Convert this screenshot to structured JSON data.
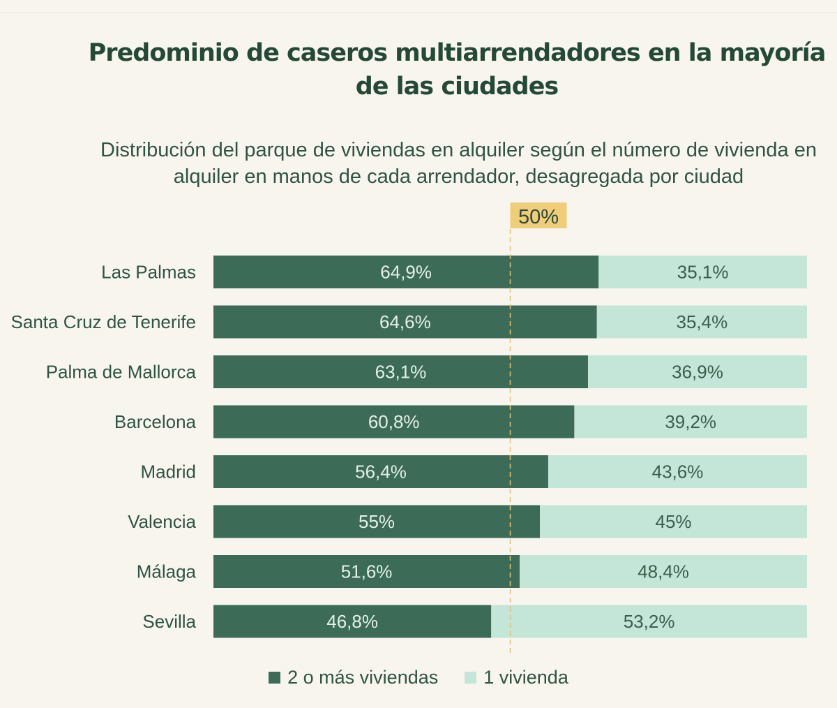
{
  "title": "Predominio de caseros multiarrendadores en la mayoría de las ciudades",
  "subtitle": "Distribución  del parque de viviendas en alquiler según el número de vivienda en alquiler en manos de cada arrendador, desagregada por ciudad",
  "colors": {
    "multi": "#3c6c58",
    "single": "#c4e6d8",
    "reference_line": "#e8c16a",
    "reference_badge": "#f0cd79",
    "city_label": "#2f5443",
    "value_label_dark": "#e4efe9",
    "value_label_light": "#3a5d4d"
  },
  "chart_data": {
    "type": "bar",
    "orientation": "horizontal",
    "stacked": true,
    "categories": [
      "Las Palmas",
      "Santa Cruz de Tenerife",
      "Palma de Mallorca",
      "Barcelona",
      "Madrid",
      "Valencia",
      "Málaga",
      "Sevilla"
    ],
    "series": [
      {
        "name": "2 o más viviendas",
        "values": [
          64.9,
          64.6,
          63.1,
          60.8,
          56.4,
          55,
          51.6,
          46.8
        ],
        "labels": [
          "64,9%",
          "64,6%",
          "63,1%",
          "60,8%",
          "56,4%",
          "55%",
          "51,6%",
          "46,8%"
        ]
      },
      {
        "name": "1 vivienda",
        "values": [
          35.1,
          35.4,
          36.9,
          39.2,
          43.6,
          45,
          48.4,
          53.2
        ],
        "labels": [
          "35,1%",
          "35,4%",
          "36,9%",
          "39,2%",
          "43,6%",
          "45%",
          "48,4%",
          "53,2%"
        ]
      }
    ],
    "xlim": [
      0,
      100
    ],
    "reference_line": {
      "value": 50,
      "label": "50%"
    },
    "legend_position": "bottom",
    "grid": false
  }
}
